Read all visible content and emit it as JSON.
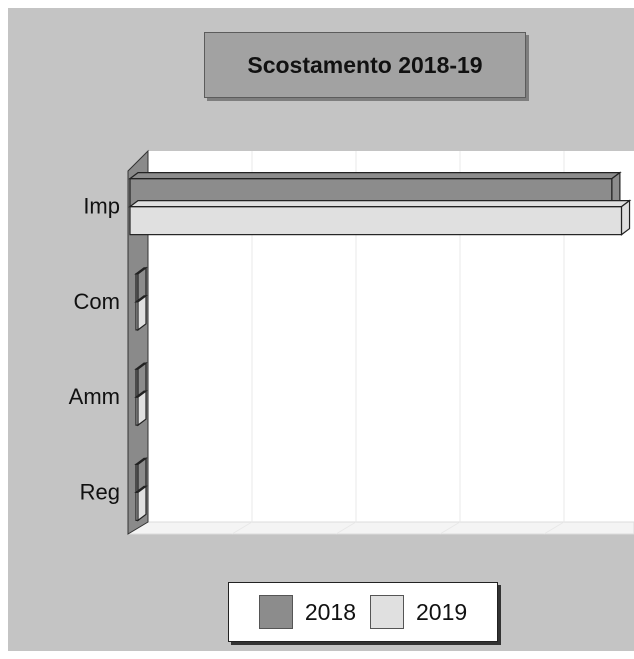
{
  "chart_data": {
    "type": "bar",
    "orientation": "horizontal",
    "title": "Scostamento 2018-19",
    "categories": [
      "Imp",
      "Com",
      "Amm",
      "Reg"
    ],
    "series": [
      {
        "name": "2018",
        "values": [
          1,
          0,
          0,
          0
        ],
        "color": "#8c8c8c"
      },
      {
        "name": "2019",
        "values": [
          1.02,
          0,
          0,
          0
        ],
        "color": "#e0e0e0"
      }
    ],
    "xlim": [
      0,
      1.05
    ],
    "grid": true,
    "legend_position": "bottom"
  }
}
